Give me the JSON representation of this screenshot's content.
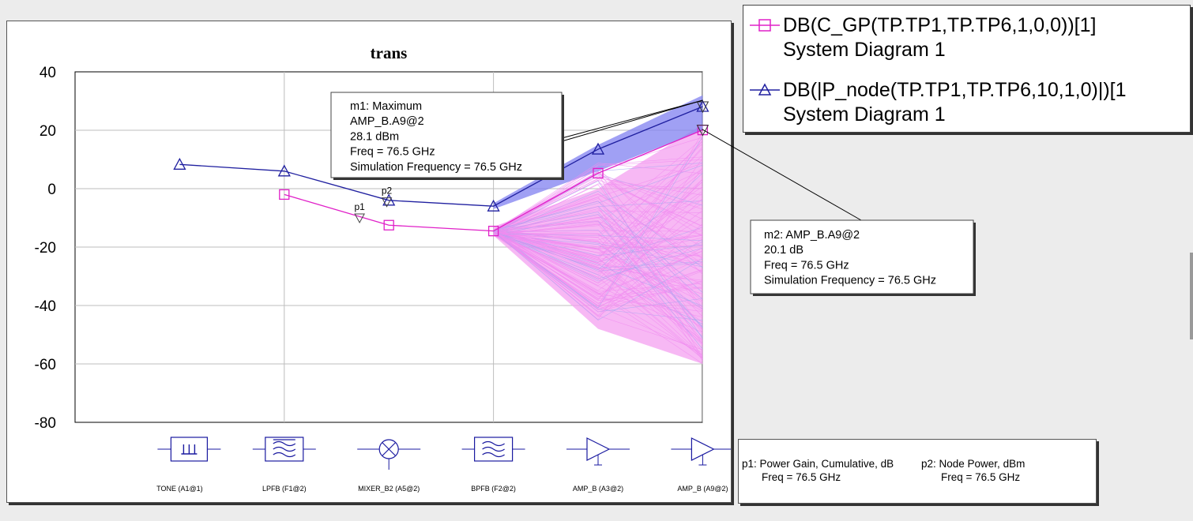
{
  "chart_data": {
    "type": "line",
    "title": "trans",
    "xlabel": "",
    "ylabel": "",
    "ylim": [
      -80,
      40
    ],
    "yticks": [
      40,
      20,
      0,
      -20,
      -40,
      -60,
      -80
    ],
    "grid": true,
    "categories": [
      "TONE (A1@1)",
      "LPFB (F1@2)",
      "MIXER_B2 (A5@2)",
      "BPFB (F2@2)",
      "AMP_B (A3@2)",
      "AMP_B (A9@2)"
    ],
    "category_icons": [
      "tone-source-icon",
      "lowpass-filter-icon",
      "mixer-icon",
      "bandpass-filter-icon",
      "amplifier-icon",
      "amplifier-icon"
    ],
    "series": [
      {
        "name": "DB(C_GP(TP.TP1,TP.TP6,1,0,0))[1]",
        "subtitle": "System Diagram 1",
        "color": "#e020c8",
        "marker": "square",
        "points": [
          [
            1,
            -2
          ],
          [
            2,
            -12.5
          ],
          [
            3,
            -14.5
          ],
          [
            4,
            5.3
          ],
          [
            5,
            20.1
          ]
        ]
      },
      {
        "name": "DB(|P_node(TP.TP1,TP.TP6,10,1,0)|)[1",
        "subtitle": "System Diagram 1",
        "color": "#2020a0",
        "marker": "triangle",
        "points": [
          [
            0,
            8.3
          ],
          [
            1,
            6
          ],
          [
            2,
            -4
          ],
          [
            3,
            -6
          ],
          [
            4,
            13.5
          ],
          [
            5,
            28.1
          ]
        ]
      }
    ],
    "markers": [
      {
        "name": "p1",
        "x": 1.72,
        "y": -10
      },
      {
        "name": "p2",
        "x": 1.98,
        "y": -4.5
      }
    ],
    "annotations": [
      {
        "id": "m1",
        "lines": [
          "m1: Maximum",
          "AMP_B.A9@2",
          "28.1 dBm",
          "Freq = 76.5 GHz",
          "Simulation Frequency = 76.5 GHz"
        ],
        "target": [
          5,
          28.1
        ]
      },
      {
        "id": "m2",
        "lines": [
          "m2: AMP_B.A9@2",
          "20.1 dB",
          "Freq = 76.5 GHz",
          "Simulation Frequency = 76.5 GHz"
        ],
        "target": [
          5,
          20.1
        ]
      }
    ],
    "spread": {
      "blue_color": "#8080f0",
      "pink_color": "#f4a0f0"
    }
  },
  "marker_notes": [
    {
      "label": "p1: Power Gain, Cumulative, dB",
      "freq": "Freq = 76.5 GHz"
    },
    {
      "label": "p2: Node Power, dBm",
      "freq": "Freq = 76.5 GHz"
    }
  ]
}
